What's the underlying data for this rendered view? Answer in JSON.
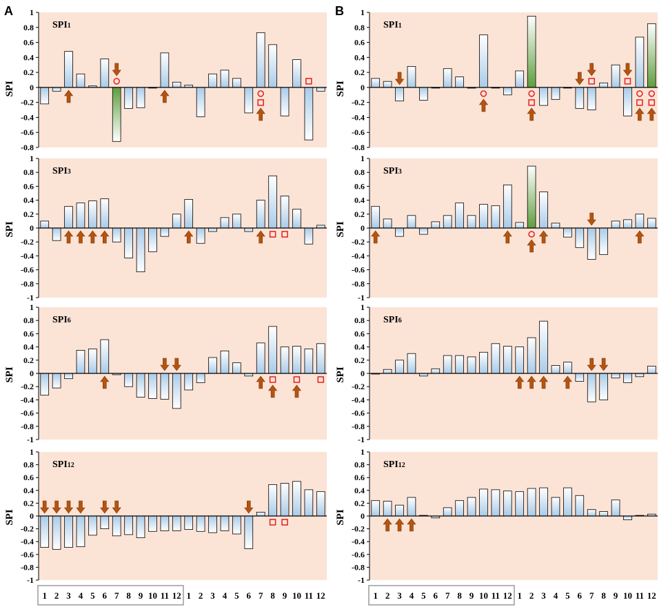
{
  "figure": {
    "y_axis_label": "SPI",
    "months": [
      "1",
      "2",
      "3",
      "4",
      "5",
      "6",
      "7",
      "8",
      "9",
      "10",
      "11",
      "12",
      "1",
      "2",
      "3",
      "4",
      "5",
      "6",
      "7",
      "8",
      "9",
      "10",
      "11",
      "12"
    ]
  },
  "colors": {
    "panel_bg": "#fbe3d6",
    "bar_blue_top": "#ffffff",
    "bar_blue_bottom": "#a9cbe8",
    "bar_green_top": "#ffffff",
    "bar_green_bottom": "#5e9e3e",
    "arrow": "#b5540f",
    "marker_red": "#e02020"
  },
  "chart_data": [
    {
      "column": "A",
      "series_label": "SPI",
      "series_sub": "1",
      "type": "bar",
      "ylim": [
        -0.8,
        1
      ],
      "yticks": [
        "1",
        "0.8",
        "0.6",
        "0.4",
        "0.2",
        "0",
        "-0.2",
        "-0.4",
        "-0.6",
        "-0.8"
      ],
      "values": [
        -0.22,
        -0.05,
        0.48,
        0.18,
        0.02,
        0.38,
        -0.72,
        -0.28,
        -0.27,
        0.0,
        0.46,
        0.07,
        0.03,
        -0.39,
        0.18,
        0.23,
        0.12,
        -0.34,
        0.73,
        0.57,
        -0.38,
        0.37,
        -0.7,
        -0.05
      ],
      "highlight": [
        7
      ],
      "arrows_up": [
        3,
        11,
        19
      ],
      "arrows_down": [
        7
      ],
      "circles_up": [
        7
      ],
      "circles_down": [
        19
      ],
      "squares_up": [
        23
      ],
      "squares_down": [
        19
      ]
    },
    {
      "column": "B",
      "series_label": "SPI",
      "series_sub": "1",
      "type": "bar",
      "ylim": [
        -0.8,
        1
      ],
      "yticks": [
        "1",
        "0.8",
        "0.6",
        "0.4",
        "0.2",
        "0",
        "-0.2",
        "-0.4",
        "-0.6",
        "-0.8"
      ],
      "values": [
        0.12,
        0.08,
        -0.18,
        0.28,
        -0.17,
        0.0,
        0.25,
        0.14,
        -0.01,
        0.7,
        0.0,
        -0.1,
        0.22,
        0.95,
        -0.24,
        -0.16,
        0.0,
        -0.28,
        -0.3,
        0.06,
        0.3,
        -0.38,
        0.67,
        0.85
      ],
      "highlight": [
        14,
        24
      ],
      "arrows_up": [
        10,
        14,
        23,
        24
      ],
      "arrows_down": [
        3,
        18,
        19,
        22
      ],
      "circles_up": [],
      "circles_down": [
        10,
        14,
        23,
        24
      ],
      "squares_up": [
        19,
        22
      ],
      "squares_down": [
        14,
        23,
        24
      ]
    },
    {
      "column": "A",
      "series_label": "SPI",
      "series_sub": "3",
      "type": "bar",
      "ylim": [
        -1,
        1
      ],
      "yticks": [
        "1",
        "0.8",
        "0.6",
        "0.4",
        "0.2",
        "0",
        "-0.2",
        "-0.4",
        "-0.6",
        "-0.8",
        "-1"
      ],
      "values": [
        0.1,
        -0.18,
        0.31,
        0.36,
        0.39,
        0.42,
        -0.2,
        -0.43,
        -0.63,
        -0.34,
        -0.12,
        0.2,
        0.41,
        -0.22,
        -0.05,
        0.15,
        0.2,
        -0.05,
        0.4,
        0.75,
        0.46,
        0.27,
        -0.23,
        0.04
      ],
      "highlight": [],
      "arrows_up": [
        3,
        4,
        5,
        6,
        13,
        19
      ],
      "arrows_down": [],
      "circles_up": [],
      "circles_down": [],
      "squares_up": [],
      "squares_down": [
        20,
        21
      ]
    },
    {
      "column": "B",
      "series_label": "SPI",
      "series_sub": "3",
      "type": "bar",
      "ylim": [
        -1,
        1
      ],
      "yticks": [
        "1",
        "0.8",
        "0.6",
        "0.4",
        "0.2",
        "0",
        "-0.2",
        "-0.4",
        "-0.6",
        "-0.8",
        "-1"
      ],
      "values": [
        0.31,
        0.13,
        -0.12,
        0.18,
        -0.09,
        0.09,
        0.18,
        0.36,
        0.18,
        0.34,
        0.32,
        0.62,
        0.08,
        0.89,
        0.52,
        0.07,
        -0.13,
        -0.28,
        -0.45,
        -0.38,
        0.1,
        0.12,
        0.2,
        0.14
      ],
      "highlight": [
        14
      ],
      "arrows_up": [
        1,
        12,
        14,
        15,
        23
      ],
      "arrows_down": [
        19
      ],
      "circles_up": [],
      "circles_down": [
        14
      ],
      "squares_up": [],
      "squares_down": []
    },
    {
      "column": "A",
      "series_label": "SPI",
      "series_sub": "6",
      "type": "bar",
      "ylim": [
        -1,
        1
      ],
      "yticks": [
        "1",
        "0.8",
        "0.6",
        "0.4",
        "0.2",
        "0",
        "-0.2",
        "-0.4",
        "-0.6",
        "-0.8",
        "-1"
      ],
      "values": [
        -0.33,
        -0.22,
        -0.08,
        0.35,
        0.37,
        0.51,
        -0.02,
        -0.2,
        -0.36,
        -0.38,
        -0.39,
        -0.53,
        -0.25,
        -0.14,
        0.24,
        0.34,
        0.16,
        -0.04,
        0.46,
        0.71,
        0.4,
        0.41,
        0.37,
        0.45
      ],
      "highlight": [],
      "arrows_up": [
        6,
        19,
        20,
        22
      ],
      "arrows_down": [
        11,
        12
      ],
      "circles_up": [],
      "circles_down": [],
      "squares_up": [],
      "squares_down": [
        20,
        22,
        24
      ]
    },
    {
      "column": "B",
      "series_label": "SPI",
      "series_sub": "6",
      "type": "bar",
      "ylim": [
        -1,
        1
      ],
      "yticks": [
        "1",
        "0.8",
        "0.6",
        "0.4",
        "0.2",
        "0",
        "-0.2",
        "-0.4",
        "-0.6",
        "-0.8",
        "-1"
      ],
      "values": [
        0.0,
        0.06,
        0.2,
        0.3,
        -0.04,
        0.07,
        0.27,
        0.27,
        0.25,
        0.32,
        0.45,
        0.41,
        0.4,
        0.54,
        0.79,
        0.12,
        0.17,
        -0.12,
        -0.43,
        -0.4,
        -0.07,
        -0.14,
        -0.05,
        0.11
      ],
      "highlight": [],
      "arrows_up": [
        13,
        14,
        15,
        17
      ],
      "arrows_down": [
        19,
        20
      ],
      "circles_up": [],
      "circles_down": [],
      "squares_up": [],
      "squares_down": []
    },
    {
      "column": "A",
      "series_label": "SPI",
      "series_sub": "12",
      "type": "bar",
      "ylim": [
        -1,
        1
      ],
      "yticks": [
        "1",
        "0.8",
        "0.6",
        "0.4",
        "0.2",
        "0",
        "-0.2",
        "-0.4",
        "-0.6",
        "-0.8",
        "-1"
      ],
      "values": [
        -0.49,
        -0.52,
        -0.49,
        -0.48,
        -0.3,
        -0.2,
        -0.31,
        -0.29,
        -0.34,
        -0.24,
        -0.23,
        -0.23,
        -0.21,
        -0.24,
        -0.26,
        -0.23,
        -0.28,
        -0.51,
        0.06,
        0.49,
        0.51,
        0.54,
        0.41,
        0.38
      ],
      "highlight": [],
      "arrows_up": [],
      "arrows_down": [
        1,
        2,
        3,
        4,
        6,
        7,
        18
      ],
      "circles_up": [],
      "circles_down": [],
      "squares_up": [],
      "squares_down": [
        20,
        21
      ]
    },
    {
      "column": "B",
      "series_label": "SPI",
      "series_sub": "12",
      "type": "bar",
      "ylim": [
        -1,
        1
      ],
      "yticks": [
        "1",
        "0.8",
        "0.6",
        "0.4",
        "0.2",
        "0",
        "-0.2",
        "-0.4",
        "-0.6",
        "-0.8",
        "-1"
      ],
      "values": [
        0.24,
        0.23,
        0.17,
        0.29,
        0.01,
        -0.03,
        0.13,
        0.24,
        0.29,
        0.42,
        0.41,
        0.39,
        0.38,
        0.43,
        0.44,
        0.29,
        0.44,
        0.32,
        0.1,
        0.07,
        0.25,
        -0.06,
        0.01,
        0.03
      ],
      "highlight": [],
      "arrows_up": [
        2,
        3,
        4
      ],
      "arrows_down": [],
      "circles_up": [],
      "circles_down": [],
      "squares_up": [],
      "squares_down": []
    }
  ]
}
